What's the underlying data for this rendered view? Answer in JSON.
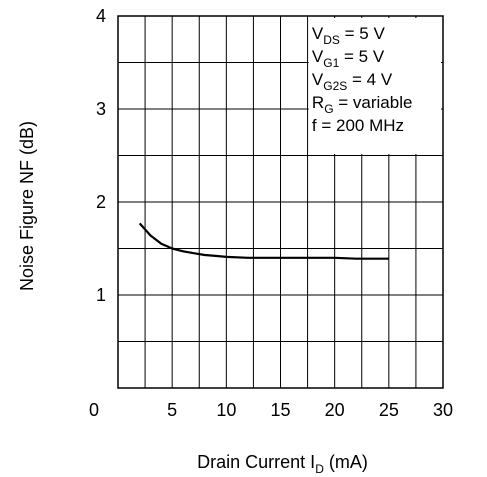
{
  "chart_data": {
    "type": "line",
    "xlabel": {
      "main": "Drain  Current I",
      "sub": "D",
      "unit": " (mA)"
    },
    "ylabel": "Noise Figure NF (dB)",
    "xlim": [
      0,
      30
    ],
    "ylim": [
      0,
      4
    ],
    "x_ticks": [
      "0",
      "5",
      "10",
      "15",
      "20",
      "25",
      "30"
    ],
    "y_ticks": [
      "1",
      "2",
      "3",
      "4"
    ],
    "x_minor_step": 2.5,
    "y_minor_step": 0.5,
    "grid": true,
    "series": [
      {
        "x": [
          2,
          3,
          4,
          5,
          6,
          7,
          8,
          9,
          10,
          12,
          14,
          16,
          18,
          20,
          22,
          25
        ],
        "y": [
          1.77,
          1.64,
          1.55,
          1.5,
          1.47,
          1.45,
          1.43,
          1.42,
          1.41,
          1.4,
          1.4,
          1.4,
          1.4,
          1.4,
          1.39,
          1.39
        ]
      }
    ],
    "annotations": [
      {
        "main": "V",
        "sub": "DS",
        "rest": " = 5 V"
      },
      {
        "main": "V",
        "sub": "G1",
        "rest": " = 5 V"
      },
      {
        "main": "V",
        "sub": "G2S",
        "rest": " = 4 V"
      },
      {
        "main": "R",
        "sub": "G",
        "rest": "  = variable"
      },
      {
        "main": "f = 200 MHz",
        "sub": "",
        "rest": ""
      }
    ]
  }
}
